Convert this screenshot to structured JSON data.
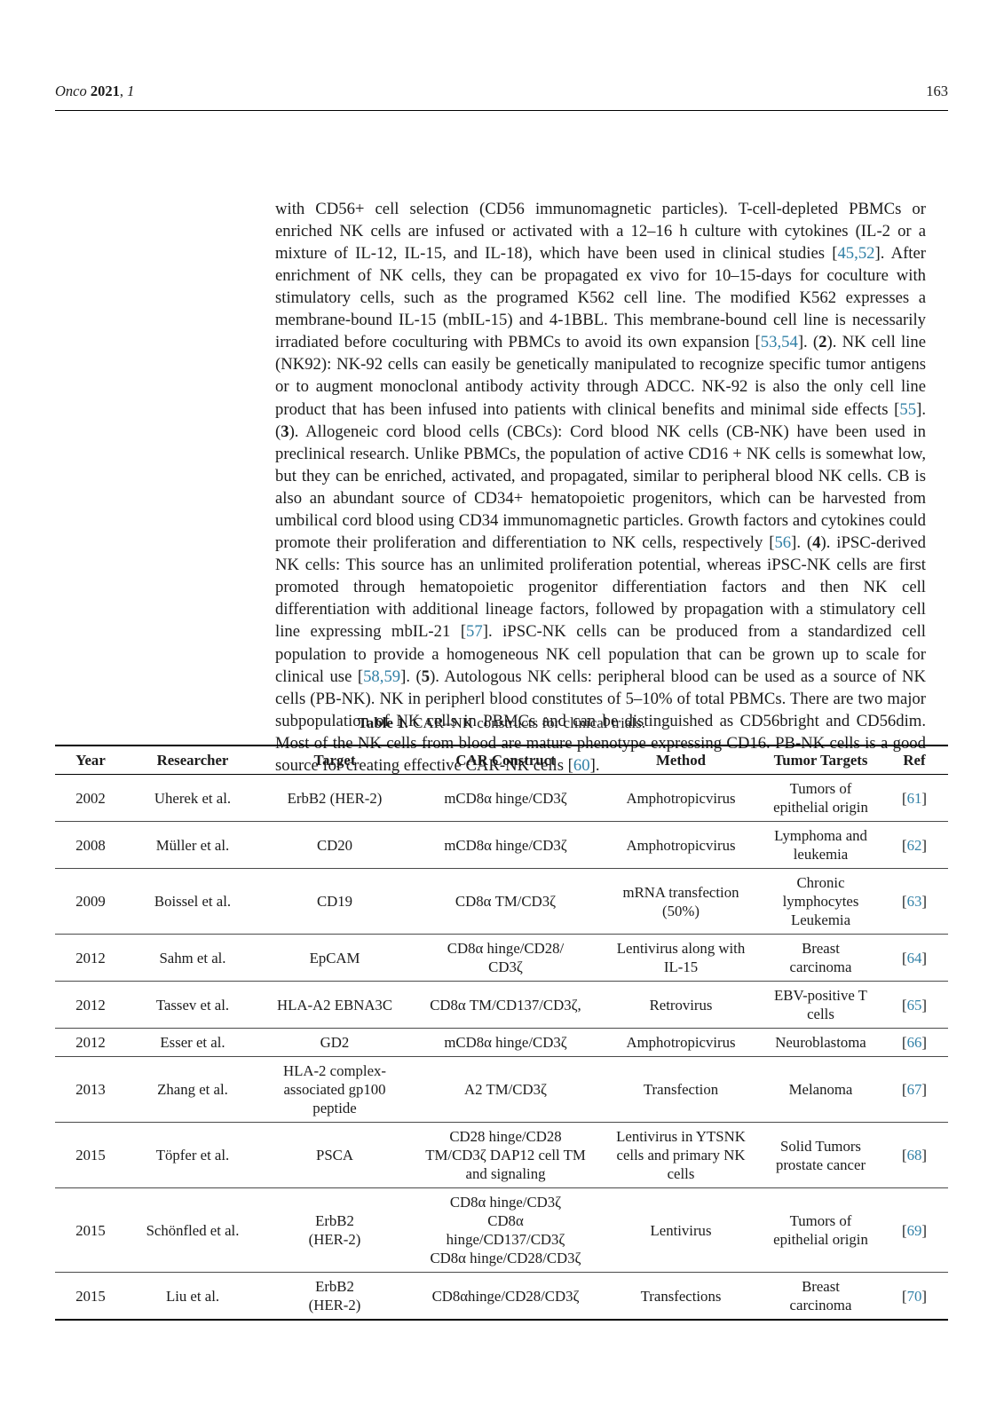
{
  "header": {
    "journal": "Onco",
    "year": "2021",
    "sep": ", ",
    "volume": "1",
    "page_number": "163"
  },
  "body": {
    "segments": [
      {
        "s": "n",
        "t": "with CD56+ cell selection (CD56 immunomagnetic particles). T-cell-depleted PBMCs or enriched NK cells are infused or activated with a 12–16 h culture with cytokines (IL-2 or a mixture of IL-12, IL-15, and IL-18), which have been used in clinical studies ["
      },
      {
        "s": "c",
        "t": "45,52"
      },
      {
        "s": "n",
        "t": "]. After enrichment of NK cells, they can be propagated ex vivo for 10–15-days for coculture with stimulatory cells, such as the programed K562 cell line. The modified K562 expresses a membrane-bound IL-15 (mbIL-15) and 4-1BBL. This membrane-bound cell line is necessarily irradiated before coculturing with PBMCs to avoid its own expansion ["
      },
      {
        "s": "c",
        "t": "53,54"
      },
      {
        "s": "n",
        "t": "]. ("
      },
      {
        "s": "b",
        "t": "2"
      },
      {
        "s": "n",
        "t": "). NK cell line (NK92): NK-92 cells can easily be genetically manipulated to recognize specific tumor antigens or to augment monoclonal antibody activity through ADCC. NK-92 is also the only cell line product that has been infused into patients with clinical benefits and minimal side effects ["
      },
      {
        "s": "c",
        "t": "55"
      },
      {
        "s": "n",
        "t": "]. ("
      },
      {
        "s": "b",
        "t": "3"
      },
      {
        "s": "n",
        "t": "). Allogeneic cord blood cells (CBCs): Cord blood NK cells (CB-NK) have been used in preclinical research. Unlike PBMCs, the population of active CD16 + NK cells is somewhat low, but they can be enriched, activated, and propagated, similar to peripheral blood NK cells. CB is also an abundant source of CD34+ hematopoietic progenitors, which can be harvested from umbilical cord blood using CD34 immunomagnetic particles. Growth factors and cytokines could promote their proliferation and differentiation to NK cells, respectively ["
      },
      {
        "s": "c",
        "t": "56"
      },
      {
        "s": "n",
        "t": "]. ("
      },
      {
        "s": "b",
        "t": "4"
      },
      {
        "s": "n",
        "t": "). iPSC-derived NK cells: This source has an unlimited proliferation potential, whereas iPSC-NK cells are first promoted through hematopoietic progenitor differentiation factors and then NK cell differentiation with additional lineage factors, followed by propagation with a stimulatory cell line expressing mbIL-21 ["
      },
      {
        "s": "c",
        "t": "57"
      },
      {
        "s": "n",
        "t": "]. iPSC-NK cells can be produced from a standardized cell population to provide a homogeneous NK cell population that can be grown up to scale for clinical use ["
      },
      {
        "s": "c",
        "t": "58,59"
      },
      {
        "s": "n",
        "t": "]. ("
      },
      {
        "s": "b",
        "t": "5"
      },
      {
        "s": "n",
        "t": "). Autologous NK cells: peripheral blood can be used as a source of NK cells (PB-NK). NK in peripherl blood constitutes of 5–10% of total PBMCs. There are two major subpopulation of NK cells in PBMCs and can be distinguished as CD56bright and CD56dim. Most of the NK cells from blood are mature phenotype expressing CD16. PB-NK cells is a good source for creating effective CAR-NK cells ["
      },
      {
        "s": "c",
        "t": "60"
      },
      {
        "s": "n",
        "t": "]."
      }
    ]
  },
  "table": {
    "caption_label": "Table 1.",
    "caption_text": "CAR–NK constructs for clinical trials.",
    "columns": [
      "Year",
      "Researcher",
      "Target",
      "CAR Construct",
      "Method",
      "Tumor Targets",
      "Ref"
    ],
    "rows": [
      {
        "year": "2002",
        "researcher": "Uherek et al.",
        "target": "ErbB2 (HER-2)",
        "construct": "mCD8α hinge/CD3ζ",
        "method": "Amphotropicvirus",
        "tumor": "Tumors of\nepithelial origin",
        "ref": "61"
      },
      {
        "year": "2008",
        "researcher": "Müller et al.",
        "target": "CD20",
        "construct": "mCD8α hinge/CD3ζ",
        "method": "Amphotropicvirus",
        "tumor": "Lymphoma and\nleukemia",
        "ref": "62"
      },
      {
        "year": "2009",
        "researcher": "Boissel et al.",
        "target": "CD19",
        "construct": "CD8α TM/CD3ζ",
        "method": "mRNA transfection\n(50%)",
        "tumor": "Chronic\nlymphocytes\nLeukemia",
        "ref": "63"
      },
      {
        "year": "2012",
        "researcher": "Sahm et al.",
        "target": "EpCAM",
        "construct": "CD8α hinge/CD28/\nCD3ζ",
        "method": "Lentivirus along with\nIL-15",
        "tumor": "Breast\ncarcinoma",
        "ref": "64"
      },
      {
        "year": "2012",
        "researcher": "Tassev et al.",
        "target": "HLA-A2 EBNA3C",
        "construct": "CD8α TM/CD137/CD3ζ,",
        "method": "Retrovirus",
        "tumor": "EBV-positive T\ncells",
        "ref": "65"
      },
      {
        "year": "2012",
        "researcher": "Esser et al.",
        "target": "GD2",
        "construct": "mCD8α hinge/CD3ζ",
        "method": "Amphotropicvirus",
        "tumor": "Neuroblastoma",
        "ref": "66"
      },
      {
        "year": "2013",
        "researcher": "Zhang et al.",
        "target": "HLA-2 complex-\nassociated gp100\npeptide",
        "construct": "A2 TM/CD3ζ",
        "method": "Transfection",
        "tumor": "Melanoma",
        "ref": "67"
      },
      {
        "year": "2015",
        "researcher": "Töpfer et al.",
        "target": "PSCA",
        "construct": "CD28 hinge/CD28\nTM/CD3ζ DAP12 cell TM\nand signaling",
        "method": "Lentivirus in YTSNK\ncells and primary NK\ncells",
        "tumor": "Solid Tumors\nprostate cancer",
        "ref": "68"
      },
      {
        "year": "2015",
        "researcher": "Schönfled et al.",
        "target": "ErbB2\n(HER-2)",
        "construct": "CD8α hinge/CD3ζ\nCD8α\nhinge/CD137/CD3ζ\nCD8α hinge/CD28/CD3ζ",
        "method": "Lentivirus",
        "tumor": "Tumors of\nepithelial origin",
        "ref": "69"
      },
      {
        "year": "2015",
        "researcher": "Liu et al.",
        "target": "ErbB2\n(HER-2)",
        "construct": "CD8αhinge/CD28/CD3ζ",
        "method": "Transfections",
        "tumor": "Breast\ncarcinoma",
        "ref": "70"
      }
    ]
  }
}
